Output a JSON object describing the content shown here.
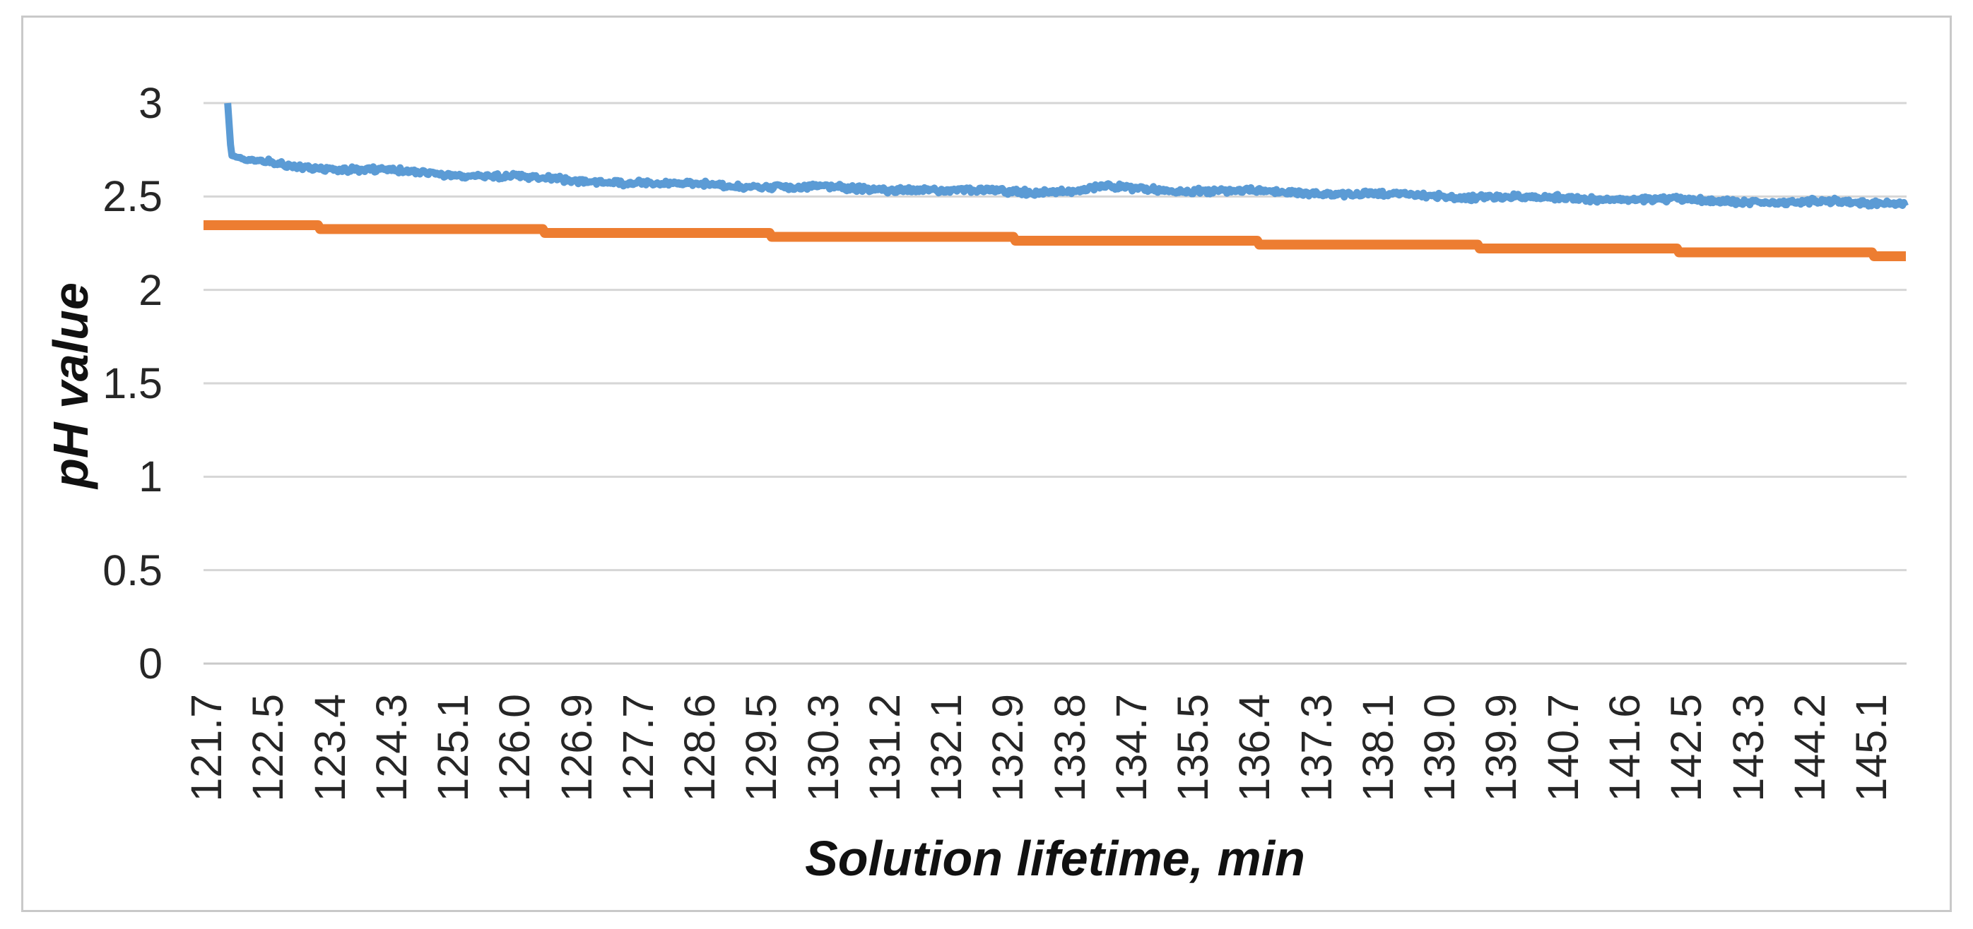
{
  "figure": {
    "background": "#ffffff",
    "border_color": "#c9c9c9"
  },
  "chart_data": {
    "type": "line",
    "title": "",
    "xlabel": "Solution lifetime, min",
    "ylabel": "pH value",
    "ylim": [
      0,
      3
    ],
    "x_range_min": [
      121.66,
      145.59
    ],
    "grid": "horizontal",
    "legend": "none",
    "y_ticks": [
      0,
      0.5,
      1,
      1.5,
      2,
      2.5,
      3
    ],
    "y_tick_labels": [
      "0",
      "0.5",
      "1",
      "1.5",
      "2",
      "2.5",
      "3"
    ],
    "x_tick_labels": [
      "121.7",
      "122.5",
      "123.4",
      "124.3",
      "125.1",
      "126.0",
      "126.9",
      "127.7",
      "128.6",
      "129.5",
      "130.3",
      "131.2",
      "132.1",
      "132.9",
      "133.8",
      "134.7",
      "135.5",
      "136.4",
      "137.3",
      "138.1",
      "139.0",
      "139.9",
      "140.7",
      "141.6",
      "142.5",
      "143.3",
      "144.2",
      "145.1"
    ],
    "colors": {
      "series_blue": "#5B9BD5",
      "series_orange": "#ED7D31",
      "gridline": "#D6D6D6",
      "axis_line": "#C9C9C9",
      "tick_text": "#262626",
      "title_text": "#111111"
    },
    "series": [
      {
        "name": "series-blue",
        "color_key": "series_blue",
        "stroke_width": 10,
        "style": "noisy",
        "points_min_ph": [
          [
            122.0,
            3.0
          ],
          [
            122.05,
            2.72
          ],
          [
            122.2,
            2.7
          ],
          [
            122.4,
            2.688
          ],
          [
            122.7,
            2.674
          ],
          [
            123.0,
            2.662
          ],
          [
            123.4,
            2.652
          ],
          [
            123.8,
            2.644
          ],
          [
            124.2,
            2.636
          ],
          [
            124.6,
            2.628
          ],
          [
            125.0,
            2.621
          ],
          [
            125.4,
            2.614
          ],
          [
            125.8,
            2.607
          ],
          [
            126.2,
            2.6
          ],
          [
            126.6,
            2.592
          ],
          [
            127.0,
            2.585
          ],
          [
            127.4,
            2.58
          ],
          [
            127.8,
            2.575
          ],
          [
            128.2,
            2.57
          ],
          [
            128.6,
            2.565
          ],
          [
            129.0,
            2.56
          ],
          [
            129.5,
            2.556
          ],
          [
            130.0,
            2.551
          ],
          [
            130.5,
            2.546
          ],
          [
            131.0,
            2.541
          ],
          [
            131.5,
            2.537
          ],
          [
            132.0,
            2.533
          ],
          [
            132.5,
            2.53
          ],
          [
            133.0,
            2.528
          ],
          [
            133.5,
            2.527
          ],
          [
            134.0,
            2.53
          ],
          [
            134.35,
            2.553
          ],
          [
            134.6,
            2.545
          ],
          [
            135.0,
            2.538
          ],
          [
            135.5,
            2.534
          ],
          [
            136.0,
            2.529
          ],
          [
            136.5,
            2.525
          ],
          [
            137.0,
            2.521
          ],
          [
            137.5,
            2.517
          ],
          [
            138.0,
            2.512
          ],
          [
            138.5,
            2.507
          ],
          [
            139.0,
            2.503
          ],
          [
            139.5,
            2.499
          ],
          [
            140.0,
            2.495
          ],
          [
            140.5,
            2.492
          ],
          [
            141.0,
            2.489
          ],
          [
            141.5,
            2.486
          ],
          [
            142.0,
            2.482
          ],
          [
            142.5,
            2.478
          ],
          [
            143.0,
            2.475
          ],
          [
            143.5,
            2.472
          ],
          [
            144.0,
            2.471
          ],
          [
            144.5,
            2.47
          ],
          [
            145.0,
            2.468
          ],
          [
            145.59,
            2.467
          ]
        ]
      },
      {
        "name": "series-orange",
        "color_key": "series_orange",
        "stroke_width": 14,
        "style": "stepped-smooth",
        "points_min_ph": [
          [
            121.66,
            2.347
          ],
          [
            124.0,
            2.331
          ],
          [
            126.0,
            2.318
          ],
          [
            128.0,
            2.305
          ],
          [
            130.0,
            2.292
          ],
          [
            132.0,
            2.28
          ],
          [
            134.0,
            2.268
          ],
          [
            136.0,
            2.256
          ],
          [
            138.0,
            2.243
          ],
          [
            140.0,
            2.229
          ],
          [
            142.0,
            2.214
          ],
          [
            144.0,
            2.199
          ],
          [
            145.1,
            2.191
          ],
          [
            145.2,
            2.187
          ],
          [
            145.59,
            2.185
          ]
        ]
      }
    ]
  }
}
